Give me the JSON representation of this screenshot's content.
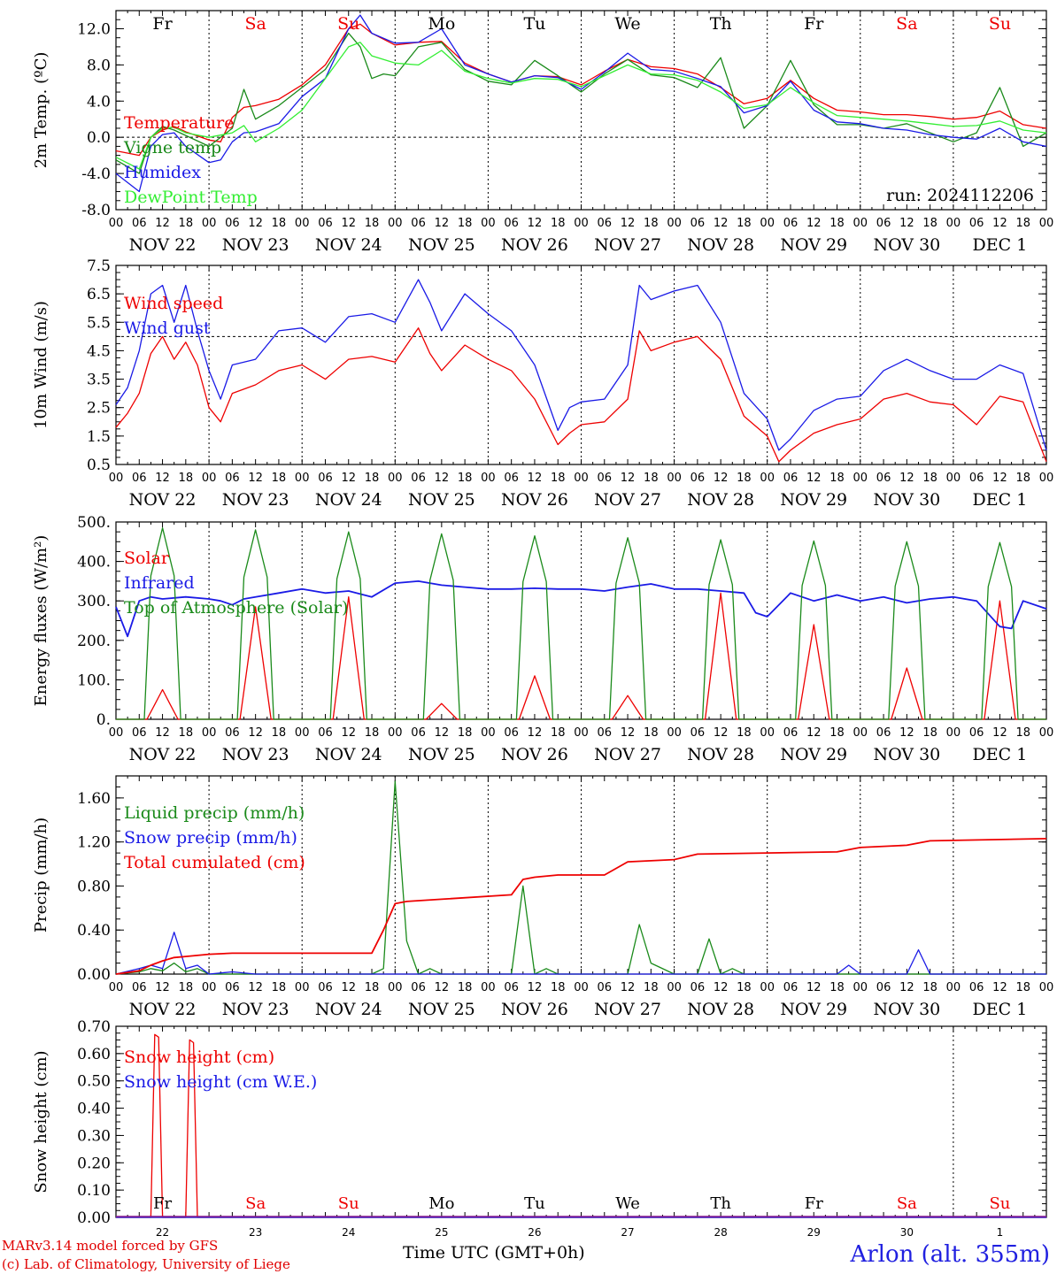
{
  "run_label": "run: 2024112206",
  "footer": {
    "model": "MARv3.14 model forced by GFS",
    "credit": "(c) Lab. of Climatology, University of Liege",
    "xlabel": "Time UTC (GMT+0h)",
    "station": "Arlon (alt. 355m)"
  },
  "colors": {
    "red": "#ee0000",
    "green": "#1a8a1a",
    "blue": "#1a1ae6",
    "lightgreen": "#33ee33",
    "purple": "#8a1a8a"
  },
  "day_names": [
    {
      "label": "Fr",
      "color": "black"
    },
    {
      "label": "Sa",
      "color": "red"
    },
    {
      "label": "Su",
      "color": "red"
    },
    {
      "label": "Mo",
      "color": "black"
    },
    {
      "label": "Tu",
      "color": "black"
    },
    {
      "label": "We",
      "color": "black"
    },
    {
      "label": "Th",
      "color": "black"
    },
    {
      "label": "Fr",
      "color": "black"
    },
    {
      "label": "Sa",
      "color": "red"
    },
    {
      "label": "Su",
      "color": "red"
    }
  ],
  "date_labels": [
    "NOV 22",
    "NOV 23",
    "NOV 24",
    "NOV 25",
    "NOV 26",
    "NOV 27",
    "NOV 28",
    "NOV 29",
    "NOV 30",
    "DEC  1"
  ],
  "hour_labels": [
    "00",
    "06",
    "12",
    "18"
  ],
  "day_numbers": [
    "22",
    "23",
    "24",
    "25",
    "26",
    "27",
    "28",
    "29",
    "30",
    "1"
  ],
  "chart_data": [
    {
      "type": "line",
      "ylabel": "2m Temp. (ºC)",
      "ylim": [
        -8,
        14
      ],
      "yticks": [
        "-8.0",
        "-4.0",
        "0.0",
        "4.0",
        "8.0",
        "12.0"
      ],
      "ytick_values": [
        -8,
        -4,
        0,
        4,
        8,
        12
      ],
      "ref_line": 0,
      "x_range_hours": [
        0,
        240
      ],
      "series": [
        {
          "name": "Temperature",
          "color": "red",
          "x": [
            0,
            6,
            9,
            12,
            15,
            18,
            24,
            27,
            30,
            33,
            36,
            42,
            48,
            54,
            60,
            63,
            66,
            72,
            78,
            84,
            90,
            96,
            102,
            108,
            114,
            120,
            126,
            132,
            138,
            144,
            150,
            156,
            162,
            168,
            174,
            180,
            186,
            192,
            198,
            204,
            210,
            216,
            222,
            228,
            234,
            240
          ],
          "y": [
            -1.5,
            -2,
            0,
            0.8,
            1.2,
            0.6,
            -0.3,
            -0.5,
            2.2,
            3.3,
            3.5,
            4.2,
            5.8,
            8,
            12,
            12.5,
            11.5,
            10.2,
            10.5,
            10.6,
            8.2,
            7,
            6.1,
            6.8,
            6.7,
            5.8,
            7.3,
            8.6,
            7.8,
            7.6,
            7,
            5.5,
            3.7,
            4.3,
            6.3,
            4.3,
            3,
            2.8,
            2.5,
            2.5,
            2.3,
            2,
            2.2,
            2.9,
            1.4,
            1
          ]
        },
        {
          "name": "Vigne temp",
          "color": "green",
          "x": [
            0,
            6,
            9,
            12,
            15,
            18,
            24,
            30,
            33,
            36,
            42,
            48,
            54,
            60,
            63,
            66,
            69,
            72,
            78,
            84,
            90,
            96,
            102,
            108,
            114,
            120,
            126,
            132,
            138,
            144,
            150,
            156,
            162,
            168,
            174,
            180,
            186,
            192,
            198,
            204,
            210,
            216,
            222,
            228,
            234,
            240
          ],
          "y": [
            -2.5,
            -4,
            0,
            1.2,
            0.8,
            0.2,
            -1,
            1,
            5.3,
            2,
            3.5,
            5.5,
            7.5,
            11.5,
            10,
            6.5,
            7,
            6.8,
            10,
            10.5,
            7.5,
            6.2,
            5.8,
            8.5,
            6.8,
            5,
            7,
            8.6,
            6.9,
            6.6,
            5.5,
            8.8,
            1,
            3.5,
            8.5,
            3.6,
            1.4,
            1.4,
            1,
            1.5,
            0.5,
            -0.5,
            0.5,
            5.5,
            -1,
            0.5
          ]
        },
        {
          "name": "Humidex",
          "color": "blue",
          "x": [
            0,
            6,
            9,
            12,
            15,
            18,
            24,
            27,
            30,
            33,
            36,
            42,
            48,
            54,
            60,
            63,
            66,
            72,
            78,
            84,
            90,
            96,
            102,
            108,
            114,
            120,
            126,
            132,
            138,
            144,
            150,
            156,
            162,
            168,
            174,
            180,
            186,
            192,
            198,
            204,
            210,
            216,
            222,
            228,
            234,
            240
          ],
          "y": [
            -4,
            -6,
            -1,
            0.3,
            0.5,
            -1,
            -2.8,
            -2.5,
            -0.5,
            0.5,
            0.6,
            1.5,
            4.5,
            6.5,
            12,
            13.5,
            11.5,
            10.4,
            10.5,
            12,
            8,
            7,
            6.1,
            6.8,
            6.6,
            5.3,
            7.2,
            9.3,
            7.5,
            7.3,
            6.5,
            5.6,
            2.7,
            3.5,
            6.2,
            3,
            1.7,
            1.5,
            1,
            0.8,
            0.3,
            0,
            -0.2,
            1,
            -0.5,
            -1
          ]
        },
        {
          "name": "DewPoint Temp",
          "color": "lightgreen",
          "x": [
            0,
            6,
            9,
            12,
            15,
            18,
            24,
            30,
            33,
            36,
            42,
            48,
            54,
            60,
            63,
            66,
            72,
            78,
            84,
            90,
            96,
            102,
            108,
            114,
            120,
            126,
            132,
            138,
            144,
            150,
            156,
            162,
            168,
            174,
            180,
            186,
            192,
            198,
            204,
            210,
            216,
            222,
            228,
            234,
            240
          ],
          "y": [
            -2.2,
            -3.5,
            0,
            1,
            1.1,
            0.5,
            0,
            0.5,
            1.3,
            -0.5,
            1,
            3,
            6.5,
            10,
            10.5,
            9,
            8.2,
            8,
            9.6,
            7.3,
            6.5,
            6,
            6.5,
            6.4,
            5.6,
            6.8,
            8,
            7,
            6.9,
            6.3,
            5,
            3.2,
            3.6,
            5.5,
            3.8,
            2.4,
            2.2,
            2,
            1.8,
            1.5,
            1.2,
            1.3,
            1.8,
            0.8,
            0.5
          ]
        }
      ]
    },
    {
      "type": "line",
      "ylabel": "10m Wind (m/s)",
      "ylim": [
        0.5,
        7.5
      ],
      "yticks": [
        "0.5",
        "1.5",
        "2.5",
        "3.5",
        "4.5",
        "5.5",
        "6.5",
        "7.5"
      ],
      "ytick_values": [
        0.5,
        1.5,
        2.5,
        3.5,
        4.5,
        5.5,
        6.5,
        7.5
      ],
      "ref_line": 5,
      "x_range_hours": [
        0,
        240
      ],
      "series": [
        {
          "name": "Wind speed",
          "color": "red",
          "x": [
            0,
            3,
            6,
            9,
            12,
            15,
            18,
            21,
            24,
            27,
            30,
            36,
            42,
            48,
            54,
            60,
            66,
            72,
            78,
            81,
            84,
            90,
            96,
            102,
            108,
            114,
            117,
            120,
            126,
            132,
            135,
            138,
            144,
            150,
            156,
            162,
            168,
            171,
            174,
            180,
            186,
            192,
            198,
            204,
            210,
            216,
            222,
            228,
            234,
            240
          ],
          "y": [
            1.8,
            2.3,
            3,
            4.4,
            5,
            4.2,
            4.8,
            4,
            2.5,
            2,
            3,
            3.3,
            3.8,
            4,
            3.5,
            4.2,
            4.3,
            4.1,
            5.3,
            4.4,
            3.8,
            4.7,
            4.2,
            3.8,
            2.8,
            1.2,
            1.6,
            1.9,
            2,
            2.8,
            5.2,
            4.5,
            4.8,
            5,
            4.2,
            2.2,
            1.5,
            0.6,
            1,
            1.6,
            1.9,
            2.1,
            2.8,
            3,
            2.7,
            2.6,
            1.9,
            2.9,
            2.7,
            0.6
          ]
        },
        {
          "name": "Wind gust",
          "color": "blue",
          "x": [
            0,
            3,
            6,
            9,
            12,
            15,
            18,
            21,
            24,
            27,
            30,
            36,
            42,
            48,
            54,
            60,
            66,
            72,
            78,
            81,
            84,
            90,
            96,
            102,
            108,
            114,
            117,
            120,
            126,
            132,
            135,
            138,
            144,
            150,
            156,
            162,
            168,
            171,
            174,
            180,
            186,
            192,
            198,
            204,
            210,
            216,
            222,
            228,
            234,
            240
          ],
          "y": [
            2.6,
            3.2,
            4.5,
            6.5,
            6.8,
            5.5,
            6.8,
            5.2,
            3.8,
            2.8,
            4,
            4.2,
            5.2,
            5.3,
            4.8,
            5.7,
            5.8,
            5.5,
            7,
            6.2,
            5.2,
            6.5,
            5.8,
            5.2,
            4,
            1.7,
            2.5,
            2.7,
            2.8,
            4,
            6.8,
            6.3,
            6.6,
            6.8,
            5.5,
            3,
            2.1,
            1,
            1.4,
            2.4,
            2.8,
            2.9,
            3.8,
            4.2,
            3.8,
            3.5,
            3.5,
            4,
            3.7,
            1
          ]
        }
      ]
    },
    {
      "type": "line",
      "ylabel": "Energy fluxes (W/m²)",
      "ylim": [
        0,
        500
      ],
      "yticks": [
        "0.",
        "100.",
        "200.",
        "300.",
        "400.",
        "500."
      ],
      "ytick_values": [
        0,
        100,
        200,
        300,
        400,
        500
      ],
      "x_range_hours": [
        0,
        240
      ],
      "daily_peaks": {
        "toa": [
          485,
          480,
          475,
          470,
          465,
          460,
          455,
          452,
          450,
          448
        ],
        "solar": [
          75,
          285,
          310,
          40,
          110,
          60,
          320,
          240,
          130,
          300
        ]
      },
      "series": [
        {
          "name": "Solar",
          "color": "red"
        },
        {
          "name": "Infrared",
          "color": "blue",
          "x": [
            0,
            3,
            6,
            9,
            12,
            18,
            24,
            27,
            30,
            33,
            36,
            42,
            48,
            54,
            60,
            66,
            72,
            78,
            84,
            90,
            96,
            102,
            108,
            114,
            120,
            126,
            132,
            138,
            144,
            150,
            156,
            162,
            165,
            168,
            174,
            180,
            186,
            192,
            198,
            204,
            210,
            216,
            222,
            228,
            231,
            234,
            240
          ],
          "y": [
            285,
            210,
            300,
            310,
            305,
            310,
            305,
            300,
            290,
            305,
            310,
            320,
            330,
            320,
            325,
            310,
            345,
            350,
            340,
            335,
            330,
            330,
            332,
            330,
            330,
            325,
            335,
            343,
            330,
            330,
            325,
            320,
            270,
            260,
            320,
            300,
            315,
            300,
            310,
            295,
            305,
            310,
            300,
            235,
            230,
            300,
            280
          ]
        },
        {
          "name": "Top of Atmosphere (Solar)",
          "color": "green"
        }
      ]
    },
    {
      "type": "line",
      "ylabel": "Precip (mm/h)",
      "ylim": [
        0,
        1.8
      ],
      "yticks": [
        "0.00",
        "0.40",
        "0.80",
        "1.20",
        "1.60"
      ],
      "ytick_values": [
        0,
        0.4,
        0.8,
        1.2,
        1.6
      ],
      "x_range_hours": [
        0,
        240
      ],
      "series": [
        {
          "name": "Liquid precip (mm/h)",
          "color": "green",
          "x": [
            0,
            6,
            9,
            12,
            15,
            18,
            21,
            24,
            66,
            69,
            72,
            75,
            78,
            81,
            84,
            90,
            102,
            105,
            108,
            111,
            114,
            120,
            132,
            135,
            138,
            144,
            150,
            153,
            156,
            159,
            162,
            168,
            240
          ],
          "y": [
            0,
            0.02,
            0.05,
            0.03,
            0.1,
            0.02,
            0.05,
            0,
            0,
            0.05,
            1.75,
            0.3,
            0,
            0.05,
            0,
            0,
            0,
            0.8,
            0,
            0.05,
            0,
            0,
            0,
            0.45,
            0.1,
            0,
            0,
            0.32,
            0,
            0.05,
            0,
            0,
            0
          ]
        },
        {
          "name": "Snow precip (mm/h)",
          "color": "blue",
          "x": [
            0,
            6,
            9,
            12,
            15,
            18,
            21,
            24,
            30,
            36,
            48,
            168,
            186,
            189,
            192,
            204,
            207,
            210,
            216,
            240
          ],
          "y": [
            0,
            0.05,
            0.08,
            0.05,
            0.38,
            0.05,
            0.08,
            0,
            0.02,
            0,
            0,
            0,
            0,
            0.08,
            0,
            0,
            0.22,
            0,
            0,
            0
          ]
        },
        {
          "name": "Total cumulated (cm)",
          "color": "red",
          "x": [
            0,
            6,
            9,
            12,
            15,
            18,
            24,
            30,
            48,
            66,
            69,
            72,
            75,
            84,
            102,
            105,
            108,
            114,
            126,
            132,
            144,
            150,
            168,
            186,
            192,
            204,
            210,
            240
          ],
          "y": [
            0,
            0.03,
            0.08,
            0.12,
            0.15,
            0.16,
            0.18,
            0.19,
            0.19,
            0.19,
            0.4,
            0.64,
            0.66,
            0.68,
            0.72,
            0.86,
            0.88,
            0.9,
            0.9,
            1.02,
            1.04,
            1.09,
            1.1,
            1.11,
            1.15,
            1.17,
            1.21,
            1.23
          ]
        }
      ]
    },
    {
      "type": "line",
      "ylabel": "Snow height (cm)",
      "ylim": [
        0,
        0.7
      ],
      "yticks": [
        "0.00",
        "0.10",
        "0.20",
        "0.30",
        "0.40",
        "0.50",
        "0.60",
        "0.70"
      ],
      "ytick_values": [
        0,
        0.1,
        0.2,
        0.3,
        0.4,
        0.5,
        0.6,
        0.7
      ],
      "x_range_hours": [
        0,
        240
      ],
      "series": [
        {
          "name": "Snow height (cm)",
          "color": "red",
          "x": [
            0,
            9,
            10,
            11,
            12,
            18,
            19,
            20,
            21,
            240
          ],
          "y": [
            0,
            0,
            0.67,
            0.66,
            0,
            0,
            0.65,
            0.64,
            0,
            0
          ]
        },
        {
          "name": "Snow height (cm W.E.)",
          "color": "blue",
          "x": [
            0,
            240
          ],
          "y": [
            0,
            0
          ]
        }
      ]
    }
  ]
}
